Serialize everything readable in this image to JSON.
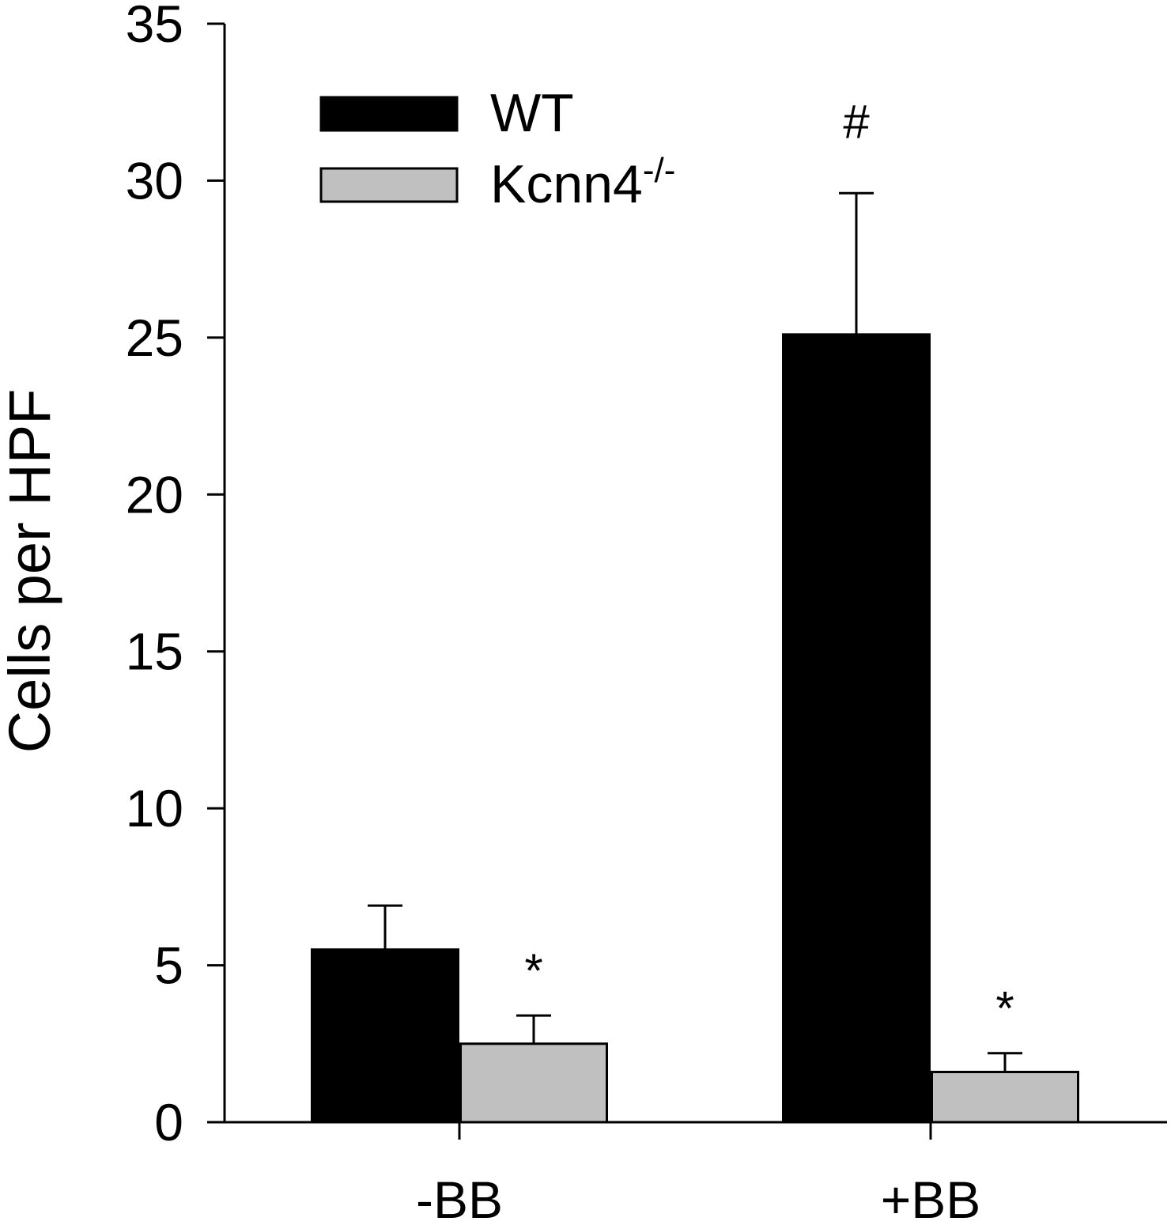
{
  "chart_data": {
    "type": "bar",
    "title": "",
    "xlabel": "",
    "ylabel": "Cells per HPF",
    "ylim": [
      0,
      35
    ],
    "yticks": [
      0,
      5,
      10,
      15,
      20,
      25,
      30,
      35
    ],
    "grid": false,
    "legend_position": "top-left",
    "categories": [
      "-BB",
      "+BB"
    ],
    "series": [
      {
        "name": "WT",
        "color": "#000000",
        "values": [
          5.5,
          25.1
        ],
        "errors": [
          1.4,
          4.5
        ],
        "annotations": [
          "",
          "#"
        ]
      },
      {
        "name": "Kcnn4",
        "name_superscript": "-/-",
        "color": "#c0c0c0",
        "values": [
          2.5,
          1.6
        ],
        "errors": [
          0.9,
          0.6
        ],
        "annotations": [
          "*",
          "*"
        ]
      }
    ]
  }
}
